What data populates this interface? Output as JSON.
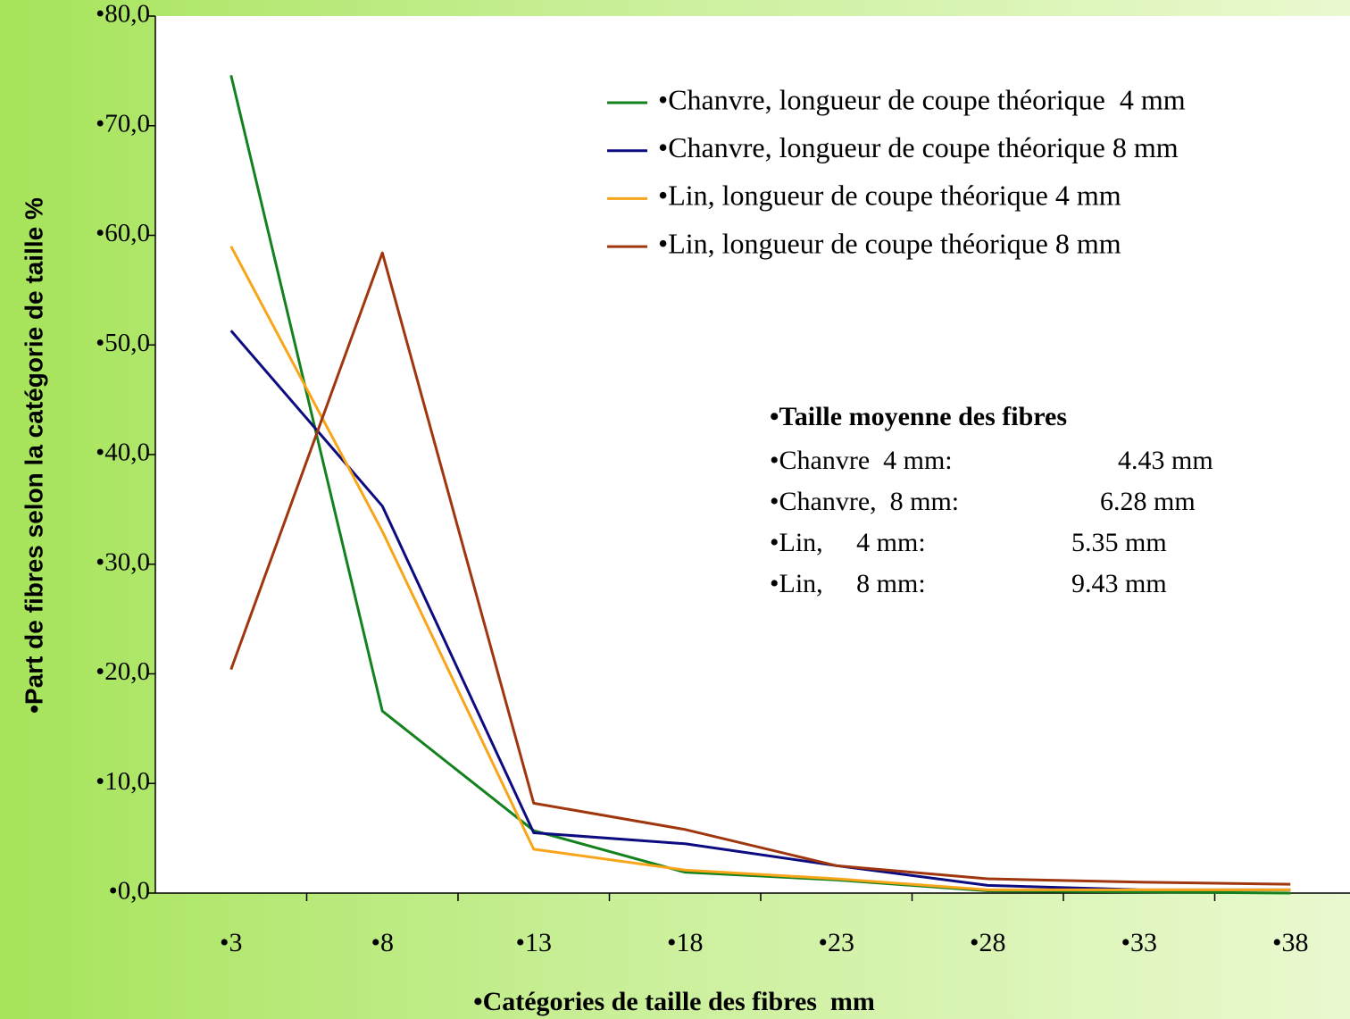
{
  "chart_data": {
    "type": "line",
    "xlabel": "•Catégories de taille des fibres  mm",
    "ylabel": "•Part de fibres selon la catégorie de taille %",
    "categories": [
      "•3",
      "•8",
      "•13",
      "•18",
      "•23",
      "•28",
      "•33",
      "•38"
    ],
    "series": [
      {
        "name": "•Chanvre, longueur de coupe théorique  4 mm",
        "color": "#13821e",
        "values": [
          74.6,
          16.6,
          5.7,
          1.9,
          1.2,
          0.2,
          0.1,
          0.0
        ]
      },
      {
        "name": "•Chanvre, longueur de coupe théorique 8 mm",
        "color": "#0c0c80",
        "values": [
          51.3,
          35.3,
          5.5,
          4.5,
          2.5,
          0.7,
          0.3,
          0.3
        ]
      },
      {
        "name": "•Lin, longueur de coupe théorique 4 mm",
        "color": "#f9a51a",
        "values": [
          59.0,
          33.0,
          4.0,
          2.1,
          1.3,
          0.3,
          0.3,
          0.3
        ]
      },
      {
        "name": "•Lin, longueur de coupe théorique 8 mm",
        "color": "#a0360e",
        "values": [
          20.4,
          58.4,
          8.2,
          5.8,
          2.5,
          1.3,
          1.0,
          0.8
        ]
      }
    ],
    "ylim": [
      0,
      80
    ],
    "yticks": [
      {
        "value": 0,
        "label": "•0,0"
      },
      {
        "value": 10,
        "label": "•10,0"
      },
      {
        "value": 20,
        "label": "•20,0"
      },
      {
        "value": 30,
        "label": "•30,0"
      },
      {
        "value": 40,
        "label": "•40,0"
      },
      {
        "value": 50,
        "label": "•50,0"
      },
      {
        "value": 60,
        "label": "•60,0"
      },
      {
        "value": 70,
        "label": "•70,0"
      },
      {
        "value": 80,
        "label": "•80,0"
      }
    ],
    "annotation": {
      "title": "•Taille moyenne des fibres",
      "rows": [
        {
          "label": "•Chanvre  4 mm:",
          "value": "4.43 mm"
        },
        {
          "label": "•Chanvre,  8 mm:",
          "value": "6.28 mm"
        },
        {
          "label": "•Lin,     4 mm:",
          "value": "5.35 mm"
        },
        {
          "label": "•Lin,     8 mm:",
          "value": "9.43 mm"
        }
      ]
    }
  }
}
